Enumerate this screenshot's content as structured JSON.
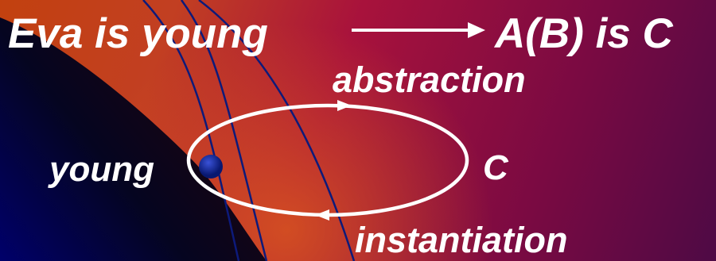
{
  "texts": {
    "premise": "Eva is young",
    "formula": "A(B) is C",
    "abstraction": "abstraction",
    "young": "young",
    "c_label": "C",
    "instantiation": "instantiation"
  },
  "colors": {
    "text": "#ffffff",
    "arrow": "#ffffff",
    "curve": "#0d1a7a",
    "dot": "#0b1f8f",
    "bg_orange": "#c2410f",
    "bg_crimson": "#a8123c",
    "bg_plum": "#5a0a45",
    "bg_navy": "#00005a"
  },
  "icons": {
    "implication_arrow": "arrow-right-icon",
    "cycle": "ellipse-cycle-icon",
    "point": "dot-icon"
  }
}
